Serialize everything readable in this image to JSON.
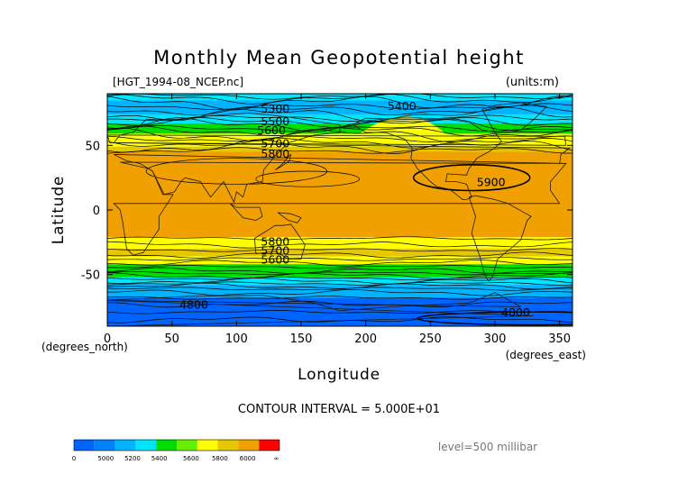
{
  "chart_data": {
    "type": "heatmap",
    "title": "Monthly Mean Geopotential height",
    "file_label": "[HGT_1994-08_NCEP.nc]",
    "units_label": "(units:m)",
    "xlabel": "Longitude",
    "ylabel": "Latitude",
    "x_unit_label": "(degrees_east)",
    "y_unit_label": "(degrees_north)",
    "xlim": [
      0,
      360
    ],
    "ylim": [
      -90,
      90
    ],
    "x_ticks": [
      0,
      50,
      100,
      150,
      200,
      250,
      300,
      350
    ],
    "y_ticks": [
      50,
      0,
      -50
    ],
    "contour_interval_text": "CONTOUR INTERVAL = 5.000E+01",
    "level_text": "level=500 millibar",
    "contour_labels": [
      {
        "text": "5300",
        "lon": 130,
        "lat": 79
      },
      {
        "text": "5400",
        "lon": 228,
        "lat": 81
      },
      {
        "text": "5500",
        "lon": 130,
        "lat": 69
      },
      {
        "text": "5600",
        "lon": 127,
        "lat": 62
      },
      {
        "text": "5700",
        "lon": 130,
        "lat": 52
      },
      {
        "text": "5800",
        "lon": 130,
        "lat": 44
      },
      {
        "text": "5900",
        "lon": 297,
        "lat": 22
      },
      {
        "text": "5800",
        "lon": 130,
        "lat": -24
      },
      {
        "text": "5700",
        "lon": 130,
        "lat": -31
      },
      {
        "text": "5600",
        "lon": 130,
        "lat": -38
      },
      {
        "text": "4800",
        "lon": 67,
        "lat": -73
      },
      {
        "text": "4800",
        "lon": 316,
        "lat": -79
      }
    ],
    "lat_bands": [
      {
        "from": 90,
        "to": 85,
        "color": "#00e6ff"
      },
      {
        "from": 85,
        "to": 74,
        "color": "#00b4ff"
      },
      {
        "from": 74,
        "to": 67,
        "color": "#00e6ff"
      },
      {
        "from": 67,
        "to": 59,
        "color": "#00dd00"
      },
      {
        "from": 59,
        "to": 49,
        "color": "#ffff00"
      },
      {
        "from": 49,
        "to": 45,
        "color": "#e6c800"
      },
      {
        "from": 45,
        "to": -21,
        "color": "#f0a000"
      },
      {
        "from": -21,
        "to": -30,
        "color": "#ffff00"
      },
      {
        "from": -30,
        "to": -36,
        "color": "#e6c800"
      },
      {
        "from": -36,
        "to": -42,
        "color": "#ffff00"
      },
      {
        "from": -42,
        "to": -52,
        "color": "#00dd00"
      },
      {
        "from": -52,
        "to": -58,
        "color": "#00e6ff"
      },
      {
        "from": -58,
        "to": -68,
        "color": "#00b4ff"
      },
      {
        "from": -68,
        "to": -90,
        "color": "#0064ff"
      }
    ],
    "colorbar": {
      "colors": [
        "#0064ff",
        "#0082ff",
        "#00b4ff",
        "#00e6ff",
        "#00dd00",
        "#64f000",
        "#ffff00",
        "#e6c800",
        "#f0a000",
        "#ff0000"
      ],
      "labels": [
        "0",
        "5000",
        "5200",
        "5400",
        "5600",
        "5800",
        "6000",
        "∞"
      ]
    }
  }
}
